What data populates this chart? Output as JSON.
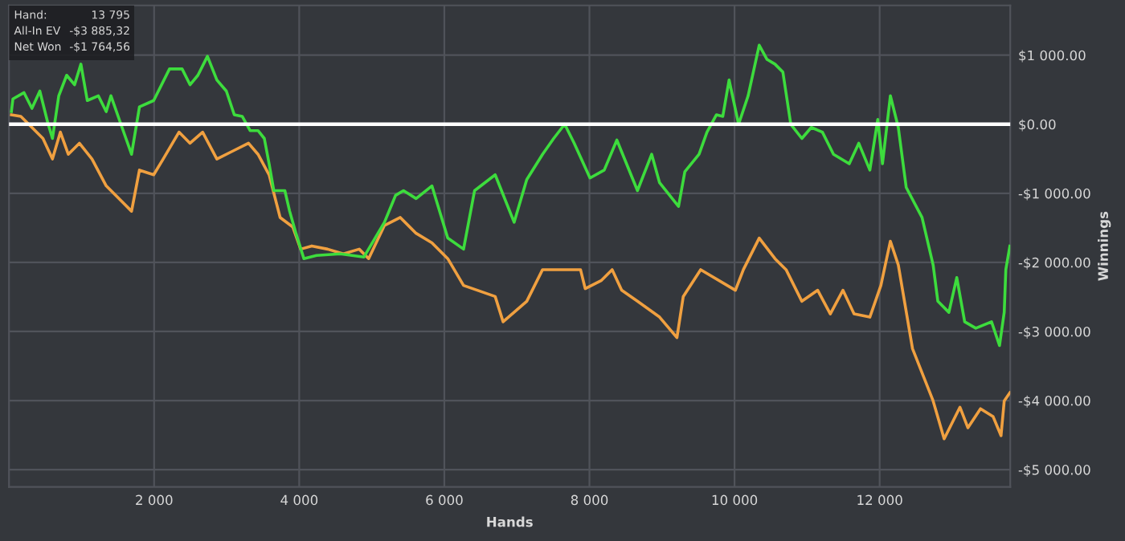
{
  "chart_data": {
    "type": "line",
    "xlabel": "Hands",
    "ylabel": "Winnings",
    "xlim": [
      0,
      13800
    ],
    "ylim": [
      -5250,
      1720
    ],
    "xticks": [
      {
        "value": 2000,
        "label": "2 000"
      },
      {
        "value": 4000,
        "label": "4 000"
      },
      {
        "value": 6000,
        "label": "6 000"
      },
      {
        "value": 8000,
        "label": "8 000"
      },
      {
        "value": 10000,
        "label": "10 000"
      },
      {
        "value": 12000,
        "label": "12 000"
      }
    ],
    "yticks": [
      {
        "value": 1000,
        "label": "$1 000.00"
      },
      {
        "value": 0,
        "label": "$0.00"
      },
      {
        "value": -1000,
        "label": "-$1 000.00"
      },
      {
        "value": -2000,
        "label": "-$2 000.00"
      },
      {
        "value": -3000,
        "label": "-$3 000.00"
      },
      {
        "value": -4000,
        "label": "-$4 000.00"
      },
      {
        "value": -5000,
        "label": "-$5 000.00"
      }
    ],
    "grid": true,
    "marker": "none",
    "line_style": "solid",
    "ref_lines": [
      {
        "axis": "y",
        "value": 0,
        "color": "#ffffff"
      }
    ],
    "annotations": [
      "Hand:",
      "13 795",
      "All-In EV",
      "-$3 885,32",
      "Net Won",
      "-$1 764,56"
    ],
    "series": [
      {
        "color": "#f0a040",
        "x": [
          33,
          163,
          316,
          468,
          599,
          708,
          817,
          970,
          1144,
          1340,
          1558,
          1689,
          1798,
          1994,
          2125,
          2343,
          2495,
          2669,
          2865,
          3083,
          3301,
          3432,
          3585,
          3737,
          3911,
          4020,
          4173,
          4391,
          4609,
          4827,
          4957,
          5175,
          5393,
          5611,
          5829,
          6047,
          6265,
          6701,
          6810,
          7136,
          7354,
          7877,
          7942,
          8160,
          8313,
          8444,
          8662,
          8967,
          9206,
          9293,
          9533,
          10012,
          10122,
          10340,
          10557,
          10710,
          10928,
          11146,
          11320,
          11494,
          11647,
          11865,
          12017,
          12148,
          12257,
          12453,
          12737,
          12889,
          13107,
          13216,
          13390,
          13564,
          13673,
          13717,
          13795
        ],
        "values": [
          137,
          114,
          -46,
          -206,
          -503,
          -114,
          -435,
          -275,
          -503,
          -892,
          -1121,
          -1259,
          -664,
          -732,
          -503,
          -114,
          -275,
          -114,
          -503,
          -389,
          -275,
          -435,
          -732,
          -1350,
          -1487,
          -1808,
          -1762,
          -1808,
          -1876,
          -1808,
          -1945,
          -1464,
          -1350,
          -1579,
          -1716,
          -1945,
          -2334,
          -2494,
          -2860,
          -2563,
          -2105,
          -2105,
          -2380,
          -2265,
          -2105,
          -2403,
          -2563,
          -2792,
          -3089,
          -2494,
          -2105,
          -2403,
          -2105,
          -1648,
          -1945,
          -2105,
          -2563,
          -2403,
          -2746,
          -2403,
          -2746,
          -2792,
          -2334,
          -1693,
          -2037,
          -3249,
          -4005,
          -4554,
          -4096,
          -4394,
          -4119,
          -4233,
          -4508,
          -4005,
          -3885.32
        ]
      },
      {
        "color": "#3ddc3d",
        "x": [
          33,
          54,
          207,
          316,
          425,
          534,
          599,
          686,
          795,
          904,
          991,
          1079,
          1231,
          1340,
          1405,
          1558,
          1689,
          1798,
          1994,
          2212,
          2386,
          2495,
          2604,
          2735,
          2865,
          2996,
          3105,
          3214,
          3323,
          3432,
          3519,
          3585,
          3650,
          3802,
          3868,
          3955,
          4064,
          4238,
          4565,
          4892,
          5175,
          5328,
          5437,
          5611,
          5829,
          6047,
          6265,
          6417,
          6701,
          6962,
          7136,
          7354,
          7507,
          7659,
          7790,
          8008,
          8204,
          8378,
          8662,
          8858,
          8967,
          9228,
          9315,
          9511,
          9620,
          9751,
          9838,
          9925,
          10056,
          10187,
          10340,
          10448,
          10557,
          10666,
          10775,
          10928,
          11058,
          11211,
          11364,
          11581,
          11712,
          11865,
          11974,
          12039,
          12148,
          12257,
          12366,
          12584,
          12737,
          12802,
          12954,
          13063,
          13172,
          13325,
          13542,
          13652,
          13717,
          13739,
          13795
        ],
        "values": [
          183,
          366,
          457,
          229,
          480,
          23,
          -206,
          412,
          709,
          572,
          870,
          343,
          412,
          183,
          412,
          -46,
          -435,
          252,
          343,
          801,
          801,
          572,
          709,
          984,
          641,
          480,
          137,
          114,
          -92,
          -92,
          -206,
          -572,
          -961,
          -961,
          -1259,
          -1579,
          -1945,
          -1900,
          -1876,
          -1922,
          -1419,
          -1030,
          -961,
          -1076,
          -892,
          -1648,
          -1808,
          -961,
          -732,
          -1419,
          -801,
          -435,
          -206,
          0,
          -275,
          -778,
          -664,
          -229,
          -961,
          -435,
          -847,
          -1190,
          -686,
          -435,
          -114,
          137,
          114,
          641,
          0,
          412,
          1144,
          938,
          870,
          755,
          0,
          -206,
          -46,
          -114,
          -435,
          -572,
          -275,
          -664,
          69,
          -572,
          412,
          -46,
          -915,
          -1350,
          -2037,
          -2563,
          -2723,
          -2220,
          -2860,
          -2952,
          -2860,
          -3204,
          -2723,
          -2105,
          -1764.56
        ]
      }
    ]
  }
}
